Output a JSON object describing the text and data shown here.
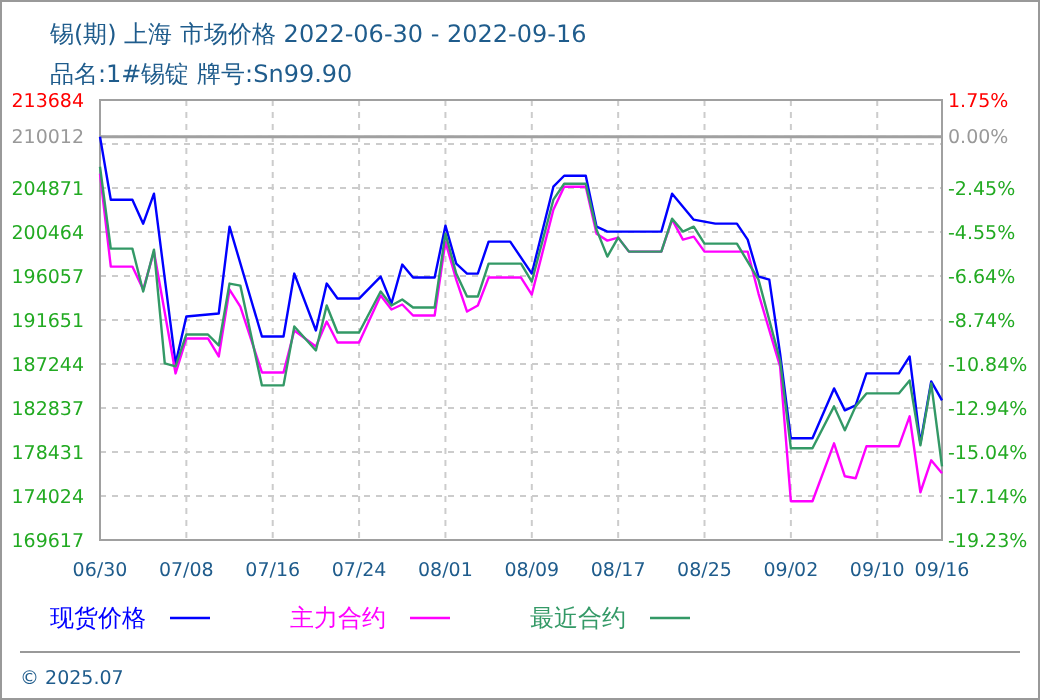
{
  "chart_data": {
    "type": "line",
    "title": "锡(期) 上海 市场价格 2022-06-30 - 2022-09-16",
    "subtitle": "品名:1#锡锭 牌号:Sn99.90",
    "xlim": [
      "2022-06-30",
      "2022-09-16"
    ],
    "xticks": [
      {
        "value": "2022-06-30",
        "label": "06/30"
      },
      {
        "value": "2022-07-08",
        "label": "07/08"
      },
      {
        "value": "2022-07-16",
        "label": "07/16"
      },
      {
        "value": "2022-07-24",
        "label": "07/24"
      },
      {
        "value": "2022-08-01",
        "label": "08/01"
      },
      {
        "value": "2022-08-09",
        "label": "08/09"
      },
      {
        "value": "2022-08-17",
        "label": "08/17"
      },
      {
        "value": "2022-08-25",
        "label": "08/25"
      },
      {
        "value": "2022-09-02",
        "label": "09/02"
      },
      {
        "value": "2022-09-10",
        "label": "09/10"
      },
      {
        "value": "2022-09-16",
        "label": "09/16"
      }
    ],
    "ylim": [
      169617,
      213684
    ],
    "yticks": [
      213684,
      210012,
      {
        "value": 209277,
        "label": null
      },
      204871,
      200464,
      196057,
      191651,
      187244,
      182837,
      178431,
      174024,
      169617
    ],
    "y2lim": [
      -19.23,
      1.75
    ],
    "y2ticks": [
      {
        "value": 1.75,
        "label": "1.75%"
      },
      {
        "value": 0,
        "label": "0.00%"
      },
      {
        "value": -2.45,
        "label": "-2.45%"
      },
      {
        "value": -4.55,
        "label": "-4.55%"
      },
      {
        "value": -6.64,
        "label": "-6.64%"
      },
      {
        "value": -8.74,
        "label": "-8.74%"
      },
      {
        "value": -10.84,
        "label": "-10.84%"
      },
      {
        "value": -12.94,
        "label": "-12.94%"
      },
      {
        "value": -15.04,
        "label": "-15.04%"
      },
      {
        "value": -17.14,
        "label": "-17.14%"
      },
      {
        "value": -19.23,
        "label": "-19.23%"
      }
    ],
    "ref_lines": [
      {
        "axis": "y2",
        "value": 0,
        "color": "#a0a0a0"
      }
    ],
    "grid": true,
    "legend": "bottom",
    "line_style": "solid",
    "annotations": [
      "© 2025.07"
    ],
    "series": [
      {
        "name": "现货价格",
        "color": "#0000ff",
        "x": [
          "2022-06-30",
          "2022-07-01",
          "2022-07-03",
          "2022-07-04",
          "2022-07-05",
          "2022-07-07",
          "2022-07-08",
          "2022-07-11",
          "2022-07-12",
          "2022-07-15",
          "2022-07-17",
          "2022-07-18",
          "2022-07-20",
          "2022-07-21",
          "2022-07-22",
          "2022-07-24",
          "2022-07-26",
          "2022-07-27",
          "2022-07-28",
          "2022-07-29",
          "2022-07-31",
          "2022-08-01",
          "2022-08-02",
          "2022-08-03",
          "2022-08-04",
          "2022-08-05",
          "2022-08-07",
          "2022-08-09",
          "2022-08-11",
          "2022-08-12",
          "2022-08-14",
          "2022-08-15",
          "2022-08-16",
          "2022-08-21",
          "2022-08-22",
          "2022-08-24",
          "2022-08-26",
          "2022-08-28",
          "2022-08-29",
          "2022-08-30",
          "2022-08-31",
          "2022-09-01",
          "2022-09-02",
          "2022-09-04",
          "2022-09-06",
          "2022-09-07",
          "2022-09-08",
          "2022-09-09",
          "2022-09-12",
          "2022-09-13",
          "2022-09-14",
          "2022-09-15",
          "2022-09-16"
        ],
        "values": [
          210000,
          203700,
          203700,
          201300,
          204300,
          187300,
          192000,
          192300,
          201000,
          190000,
          190000,
          196300,
          190600,
          195300,
          193800,
          193800,
          196000,
          193300,
          197200,
          195900,
          195900,
          201100,
          197300,
          196300,
          196300,
          199500,
          199500,
          196300,
          205000,
          206100,
          206100,
          201000,
          200500,
          200500,
          204300,
          201700,
          201300,
          201300,
          199700,
          196000,
          195700,
          188300,
          179800,
          179800,
          184800,
          182600,
          183100,
          186300,
          186300,
          188000,
          179300,
          185500,
          183600
        ]
      },
      {
        "name": "主力合约",
        "color": "#ff00ff",
        "x": [
          "2022-06-30",
          "2022-07-01",
          "2022-07-03",
          "2022-07-04",
          "2022-07-05",
          "2022-07-07",
          "2022-07-08",
          "2022-07-10",
          "2022-07-11",
          "2022-07-12",
          "2022-07-13",
          "2022-07-15",
          "2022-07-17",
          "2022-07-18",
          "2022-07-20",
          "2022-07-21",
          "2022-07-22",
          "2022-07-24",
          "2022-07-26",
          "2022-07-27",
          "2022-07-28",
          "2022-07-29",
          "2022-07-31",
          "2022-08-01",
          "2022-08-02",
          "2022-08-03",
          "2022-08-04",
          "2022-08-05",
          "2022-08-08",
          "2022-08-09",
          "2022-08-11",
          "2022-08-12",
          "2022-08-14",
          "2022-08-15",
          "2022-08-16",
          "2022-08-17",
          "2022-08-18",
          "2022-08-21",
          "2022-08-22",
          "2022-08-23",
          "2022-08-24",
          "2022-08-25",
          "2022-08-29",
          "2022-08-30",
          "2022-09-01",
          "2022-09-02",
          "2022-09-04",
          "2022-09-06",
          "2022-09-07",
          "2022-09-08",
          "2022-09-09",
          "2022-09-12",
          "2022-09-13",
          "2022-09-14",
          "2022-09-15",
          "2022-09-16"
        ],
        "values": [
          206300,
          197000,
          197000,
          194700,
          198500,
          186300,
          189800,
          189800,
          188000,
          194700,
          193000,
          186400,
          186400,
          190600,
          189000,
          191500,
          189400,
          189400,
          194100,
          192700,
          193200,
          192100,
          192100,
          199500,
          195700,
          192500,
          193100,
          195900,
          195900,
          194200,
          202700,
          205000,
          205000,
          200300,
          199600,
          199900,
          198500,
          198500,
          201700,
          199700,
          200000,
          198500,
          198500,
          194300,
          187000,
          173500,
          173500,
          179300,
          176000,
          175800,
          179000,
          179000,
          182000,
          174400,
          177600,
          176300
        ]
      },
      {
        "name": "最近合约",
        "color": "#339966",
        "x": [
          "2022-06-30",
          "2022-07-01",
          "2022-07-03",
          "2022-07-04",
          "2022-07-05",
          "2022-07-06",
          "2022-07-07",
          "2022-07-08",
          "2022-07-10",
          "2022-07-11",
          "2022-07-12",
          "2022-07-13",
          "2022-07-15",
          "2022-07-17",
          "2022-07-18",
          "2022-07-20",
          "2022-07-21",
          "2022-07-22",
          "2022-07-24",
          "2022-07-26",
          "2022-07-27",
          "2022-07-28",
          "2022-07-29",
          "2022-07-31",
          "2022-08-01",
          "2022-08-02",
          "2022-08-03",
          "2022-08-04",
          "2022-08-05",
          "2022-08-08",
          "2022-08-09",
          "2022-08-11",
          "2022-08-12",
          "2022-08-14",
          "2022-08-15",
          "2022-08-16",
          "2022-08-17",
          "2022-08-18",
          "2022-08-21",
          "2022-08-22",
          "2022-08-23",
          "2022-08-24",
          "2022-08-25",
          "2022-08-28",
          "2022-08-30",
          "2022-09-01",
          "2022-09-02",
          "2022-09-04",
          "2022-09-06",
          "2022-09-07",
          "2022-09-08",
          "2022-09-09",
          "2022-09-12",
          "2022-09-13",
          "2022-09-14",
          "2022-09-15",
          "2022-09-16"
        ],
        "values": [
          207000,
          198800,
          198800,
          194500,
          198700,
          187300,
          187000,
          190200,
          190200,
          189100,
          195300,
          195100,
          185100,
          185100,
          191000,
          188600,
          193100,
          190400,
          190400,
          194500,
          193100,
          193700,
          192900,
          192900,
          200300,
          196300,
          194000,
          194000,
          197300,
          197300,
          195500,
          203700,
          205300,
          205300,
          200700,
          198000,
          199900,
          198500,
          198500,
          201800,
          200500,
          201000,
          199300,
          199300,
          195700,
          187600,
          178800,
          178800,
          183000,
          180600,
          183000,
          184300,
          184300,
          185600,
          179100,
          185300,
          177000
        ]
      }
    ]
  }
}
